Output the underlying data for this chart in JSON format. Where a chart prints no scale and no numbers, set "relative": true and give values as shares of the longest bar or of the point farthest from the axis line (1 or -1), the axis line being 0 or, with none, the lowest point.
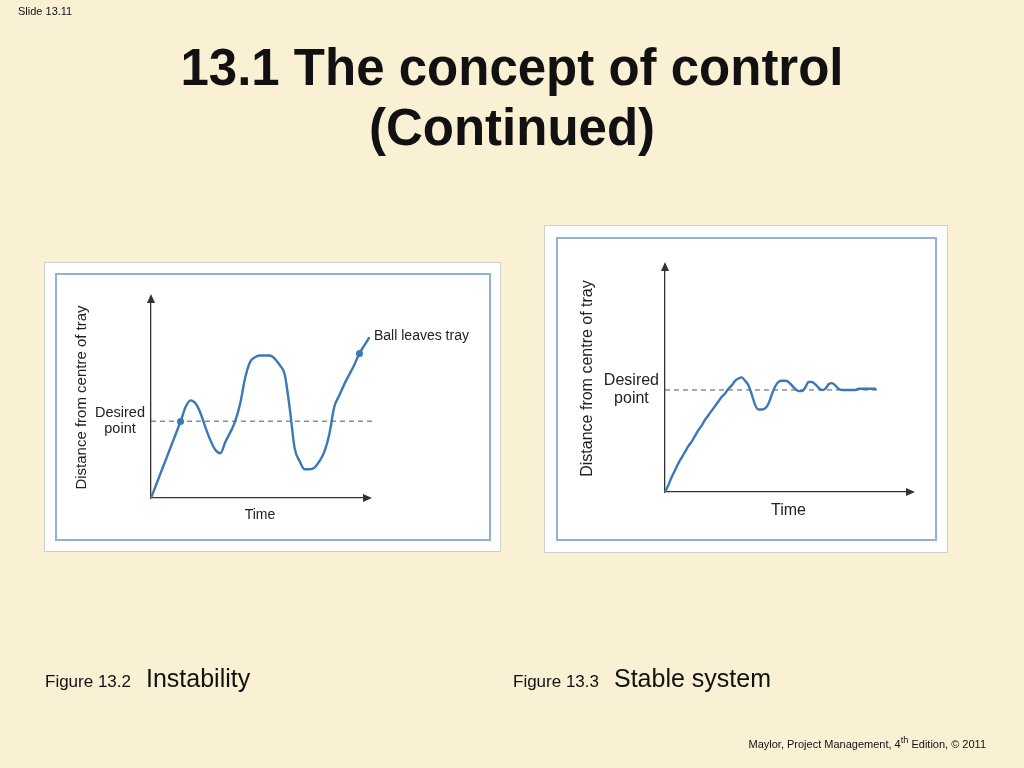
{
  "chart_data": [
    {
      "type": "line",
      "title": "Instability",
      "xlabel": "Time",
      "ylabel": "Distance from centre of tray",
      "relative": true,
      "categories": [
        null,
        null,
        null,
        null,
        null,
        null,
        null,
        null,
        null,
        null,
        null,
        null,
        null,
        null,
        null,
        null,
        null,
        null,
        null,
        null,
        null,
        null,
        null,
        null,
        null,
        null,
        null,
        null,
        null,
        null,
        null,
        null,
        null,
        null,
        null,
        null,
        null,
        null,
        null,
        null,
        null,
        null,
        null,
        null,
        null
      ],
      "series": [
        {
          "color": "#3a78b8",
          "values": [
            0,
            0.08,
            0.16,
            0.24,
            0.32,
            0.4,
            0.48,
            0.57,
            0.61,
            0.59,
            0.53,
            0.44,
            0.36,
            0.3,
            0.28,
            0.35,
            0.41,
            0.48,
            0.59,
            0.75,
            0.85,
            0.88,
            0.89,
            0.89,
            0.89,
            0.87,
            0.83,
            0.77,
            0.56,
            0.31,
            0.23,
            0.18,
            0.18,
            0.19,
            0.23,
            0.29,
            0.4,
            0.57,
            0.64,
            0.71,
            0.77,
            0.83,
            0.9,
            0.95,
            1
          ]
        }
      ],
      "ref_lines": [
        {
          "axis": "y",
          "value": 0.48,
          "label": "Desired point",
          "color": "#555555",
          "line_style": "dashed"
        }
      ],
      "annotations": [
        "Figure 13.2",
        "Ball leaves tray"
      ]
    },
    {
      "type": "line",
      "title": "Stable system",
      "xlabel": "Time",
      "ylabel": "Distance from centre of tray",
      "relative": true,
      "categories": [
        null,
        null,
        null,
        null,
        null,
        null,
        null,
        null,
        null,
        null,
        null,
        null,
        null,
        null,
        null,
        null,
        null,
        null,
        null,
        null,
        null,
        null,
        null,
        null,
        null,
        null,
        null,
        null,
        null,
        null,
        null,
        null,
        null,
        null,
        null,
        null,
        null,
        null,
        null,
        null,
        null,
        null,
        null,
        null,
        null,
        null,
        null,
        null,
        null,
        null,
        null,
        null,
        null,
        null,
        null,
        null,
        null,
        null,
        null,
        null,
        null,
        null,
        null,
        null,
        null,
        null,
        null,
        null,
        null,
        null,
        null,
        null,
        null,
        null,
        null
      ],
      "series": [
        {
          "color": "#3a78b8",
          "values": [
            0,
            0.06,
            0.13,
            0.19,
            0.25,
            0.3,
            0.35,
            0.4,
            0.44,
            0.49,
            0.54,
            0.58,
            0.63,
            0.67,
            0.71,
            0.75,
            0.79,
            0.83,
            0.86,
            0.9,
            0.93,
            0.97,
            0.99,
            1,
            0.97,
            0.93,
            0.85,
            0.76,
            0.72,
            0.72,
            0.73,
            0.77,
            0.85,
            0.92,
            0.96,
            0.97,
            0.97,
            0.96,
            0.93,
            0.9,
            0.88,
            0.88,
            0.91,
            0.96,
            0.96,
            0.94,
            0.91,
            0.89,
            0.9,
            0.94,
            0.95,
            0.93,
            0.9,
            0.89,
            0.89,
            0.89,
            0.89,
            0.89,
            0.9,
            0.9,
            0.9,
            0.9,
            0.9,
            0.9,
            null,
            null,
            null,
            null,
            null,
            null,
            null,
            null,
            null,
            null,
            null
          ]
        }
      ],
      "ref_lines": [
        {
          "axis": "y",
          "value": 0.89,
          "label": "Desired point",
          "color": "#555555",
          "line_style": "dashed"
        }
      ],
      "annotations": [
        "Figure 13.3"
      ]
    },
    {
      "type": "other",
      "title": "13.1 The concept of control (Continued)",
      "annotations": [
        "Slide 13.11",
        "Maylor, Project Management, 4$^{th}$ Edition, © 2011"
      ]
    }
  ]
}
